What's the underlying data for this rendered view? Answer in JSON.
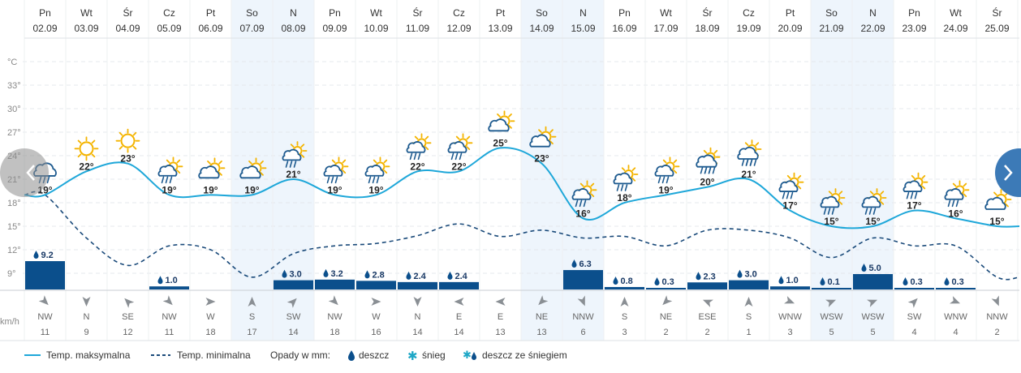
{
  "chart_data": {
    "type": "line",
    "title": "",
    "y_unit": "°C",
    "wind_unit": "km/h",
    "yticks": [
      "33°",
      "30°",
      "27°",
      "24°",
      "21°",
      "18°",
      "15°",
      "12°",
      "9°"
    ],
    "ylim": [
      6,
      36
    ],
    "days": [
      {
        "name": "Pn",
        "date": "02.09",
        "max": 19,
        "min": 19,
        "icon": "rain-cloud",
        "rain": 9.2,
        "rain_label": "9.2",
        "wind_dir": "NW",
        "wind_speed": "11",
        "weekend": false
      },
      {
        "name": "Wt",
        "date": "03.09",
        "max": 22,
        "min": 13.5,
        "icon": "sun",
        "rain": 0,
        "rain_label": "",
        "wind_dir": "N",
        "wind_speed": "9",
        "weekend": false
      },
      {
        "name": "Śr",
        "date": "04.09",
        "max": 23,
        "min": 10,
        "icon": "sun",
        "rain": 0,
        "rain_label": "",
        "wind_dir": "SE",
        "wind_speed": "12",
        "weekend": false
      },
      {
        "name": "Cz",
        "date": "05.09",
        "max": 19,
        "min": 12.5,
        "icon": "sun-cloud-rain",
        "rain": 1.0,
        "rain_label": "1.0",
        "wind_dir": "NW",
        "wind_speed": "11",
        "weekend": false
      },
      {
        "name": "Pt",
        "date": "06.09",
        "max": 19,
        "min": 12,
        "icon": "sun-cloud",
        "rain": 0,
        "rain_label": "",
        "wind_dir": "W",
        "wind_speed": "18",
        "weekend": false
      },
      {
        "name": "So",
        "date": "07.09",
        "max": 19,
        "min": 8.5,
        "icon": "sun-cloud",
        "rain": 0,
        "rain_label": "",
        "wind_dir": "S",
        "wind_speed": "17",
        "weekend": true
      },
      {
        "name": "N",
        "date": "08.09",
        "max": 21,
        "min": 11.5,
        "icon": "sun-cloud-rain",
        "rain": 3.0,
        "rain_label": "3.0",
        "wind_dir": "SW",
        "wind_speed": "14",
        "weekend": true
      },
      {
        "name": "Pn",
        "date": "09.09",
        "max": 19,
        "min": 12.5,
        "icon": "sun-cloud-rain",
        "rain": 3.2,
        "rain_label": "3.2",
        "wind_dir": "NW",
        "wind_speed": "18",
        "weekend": false
      },
      {
        "name": "Wt",
        "date": "10.09",
        "max": 19,
        "min": 12.8,
        "icon": "sun-cloud-rain",
        "rain": 2.8,
        "rain_label": "2.8",
        "wind_dir": "W",
        "wind_speed": "16",
        "weekend": false
      },
      {
        "name": "Śr",
        "date": "11.09",
        "max": 22,
        "min": 13.8,
        "icon": "sun-cloud-rain",
        "rain": 2.4,
        "rain_label": "2.4",
        "wind_dir": "N",
        "wind_speed": "14",
        "weekend": false
      },
      {
        "name": "Cz",
        "date": "12.09",
        "max": 22,
        "min": 15.3,
        "icon": "sun-cloud-rain",
        "rain": 2.4,
        "rain_label": "2.4",
        "wind_dir": "E",
        "wind_speed": "14",
        "weekend": false
      },
      {
        "name": "Pt",
        "date": "13.09",
        "max": 25,
        "min": 13.7,
        "icon": "sun-cloud",
        "rain": 0,
        "rain_label": "",
        "wind_dir": "E",
        "wind_speed": "13",
        "weekend": false
      },
      {
        "name": "So",
        "date": "14.09",
        "max": 23,
        "min": 14.5,
        "icon": "sun-cloud",
        "rain": 0,
        "rain_label": "",
        "wind_dir": "NE",
        "wind_speed": "13",
        "weekend": true
      },
      {
        "name": "N",
        "date": "15.09",
        "max": 16,
        "min": 13.5,
        "icon": "sun-cloud-rain",
        "rain": 6.3,
        "rain_label": "6.3",
        "wind_dir": "NNW",
        "wind_speed": "6",
        "weekend": true
      },
      {
        "name": "Pn",
        "date": "16.09",
        "max": 18,
        "min": 13.7,
        "icon": "sun-cloud-rain",
        "rain": 0.8,
        "rain_label": "0.8",
        "wind_dir": "S",
        "wind_speed": "3",
        "weekend": false
      },
      {
        "name": "Wt",
        "date": "17.09",
        "max": 19,
        "min": 12.5,
        "icon": "sun-cloud-rain",
        "rain": 0.3,
        "rain_label": "0.3",
        "wind_dir": "NE",
        "wind_speed": "2",
        "weekend": false
      },
      {
        "name": "Śr",
        "date": "18.09",
        "max": 20,
        "min": 14.5,
        "icon": "sun-rain-cloud",
        "rain": 2.3,
        "rain_label": "2.3",
        "wind_dir": "ESE",
        "wind_speed": "2",
        "weekend": false
      },
      {
        "name": "Cz",
        "date": "19.09",
        "max": 21,
        "min": 14.5,
        "icon": "sun-rain-cloud",
        "rain": 3.0,
        "rain_label": "3.0",
        "wind_dir": "S",
        "wind_speed": "1",
        "weekend": false
      },
      {
        "name": "Pt",
        "date": "20.09",
        "max": 17,
        "min": 13.5,
        "icon": "sun-cloud-rain",
        "rain": 1.0,
        "rain_label": "1.0",
        "wind_dir": "WNW",
        "wind_speed": "3",
        "weekend": false
      },
      {
        "name": "So",
        "date": "21.09",
        "max": 15,
        "min": 11,
        "icon": "sun-cloud-rain",
        "rain": 0.1,
        "rain_label": "0.1",
        "wind_dir": "WSW",
        "wind_speed": "5",
        "weekend": true
      },
      {
        "name": "N",
        "date": "22.09",
        "max": 15,
        "min": 13.5,
        "icon": "sun-cloud-rain",
        "rain": 5.0,
        "rain_label": "5.0",
        "wind_dir": "WSW",
        "wind_speed": "5",
        "weekend": true
      },
      {
        "name": "Pn",
        "date": "23.09",
        "max": 17,
        "min": 12.5,
        "icon": "sun-cloud-rain",
        "rain": 0.3,
        "rain_label": "0.3",
        "wind_dir": "SW",
        "wind_speed": "4",
        "weekend": false
      },
      {
        "name": "Wt",
        "date": "24.09",
        "max": 16,
        "min": 12.5,
        "icon": "sun-cloud-rain",
        "rain": 0.3,
        "rain_label": "0.3",
        "wind_dir": "WNW",
        "wind_speed": "4",
        "weekend": false
      },
      {
        "name": "Śr",
        "date": "25.09",
        "max": 15,
        "min": 8.5,
        "icon": "sun-cloud",
        "rain": 0,
        "rain_label": "",
        "wind_dir": "NNW",
        "wind_speed": "2",
        "weekend": false
      }
    ],
    "colors": {
      "max_line": "#1ea7d9",
      "min_line": "#1a4a7a",
      "rain_bar": "#0b4f8c",
      "weekend_bg": "#eef5fc",
      "grid": "#e4e8ec",
      "sun": "#f4b400",
      "cloud": "#1d5a8f",
      "nav": "#3c7ab7"
    }
  },
  "legend": {
    "max_label": "Temp. maksymalna",
    "min_label": "Temp. minimalna",
    "precip_title": "Opady w mm:",
    "rain_label": "deszcz",
    "snow_label": "śnieg",
    "mixed_label": "deszcz ze śniegiem"
  }
}
